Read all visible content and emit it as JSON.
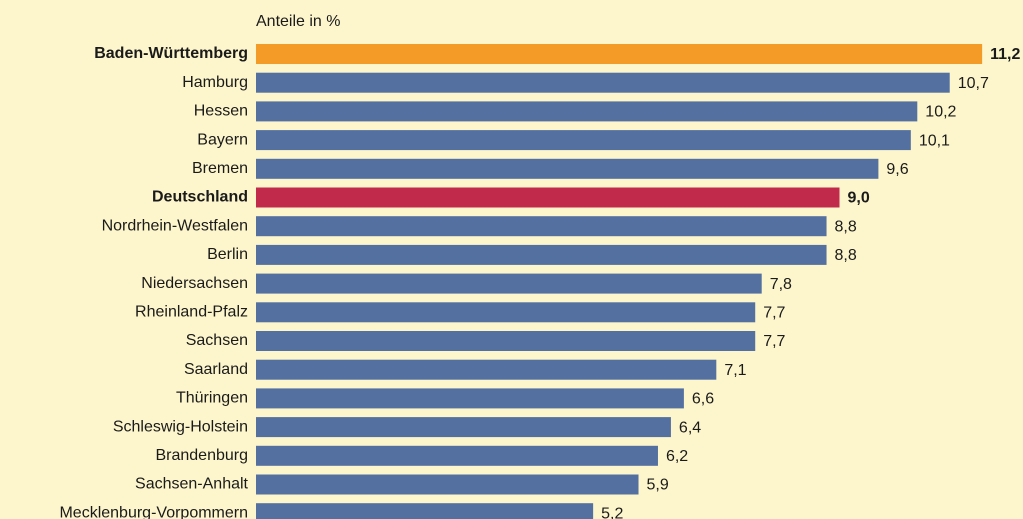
{
  "chart_data": {
    "type": "barh",
    "axis_label": "Anteile in %",
    "categories": [
      "Baden-Württemberg",
      "Hamburg",
      "Hessen",
      "Bayern",
      "Bremen",
      "Deutschland",
      "Nordrhein-Westfalen",
      "Berlin",
      "Niedersachsen",
      "Rheinland-Pfalz",
      "Sachsen",
      "Saarland",
      "Thüringen",
      "Schleswig-Holstein",
      "Brandenburg",
      "Sachsen-Anhalt",
      "Mecklenburg-Vorpommern"
    ],
    "values": [
      11.2,
      10.7,
      10.2,
      10.1,
      9.6,
      9.0,
      8.8,
      8.8,
      7.8,
      7.7,
      7.7,
      7.1,
      6.6,
      6.4,
      6.2,
      5.9,
      5.2
    ],
    "value_labels": [
      "11,2",
      "10,7",
      "10,2",
      "10,1",
      "9,6",
      "9,0",
      "8,8",
      "8,8",
      "7,8",
      "7,7",
      "7,7",
      "7,1",
      "6,6",
      "6,4",
      "6,2",
      "5,9",
      "5,2"
    ],
    "color": "#5470a1",
    "colors": [
      "#f39a27",
      "#5470a1",
      "#5470a1",
      "#5470a1",
      "#5470a1",
      "#c12a4a",
      "#5470a1",
      "#5470a1",
      "#5470a1",
      "#5470a1",
      "#5470a1",
      "#5470a1",
      "#5470a1",
      "#5470a1",
      "#5470a1",
      "#5470a1",
      "#5470a1"
    ],
    "xlim": [
      0,
      12
    ]
  }
}
